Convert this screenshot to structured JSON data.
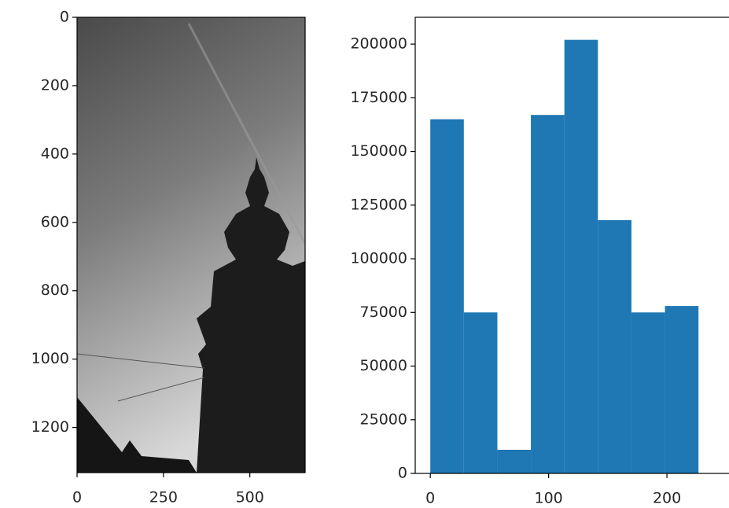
{
  "chart_data": [
    {
      "type": "image",
      "xlim": [
        0,
        660
      ],
      "ylim": [
        1332,
        0
      ],
      "xticks": [
        0,
        250,
        500
      ],
      "yticks": [
        0,
        200,
        400,
        600,
        800,
        1000,
        1200
      ]
    },
    {
      "type": "histogram",
      "bins": [
        0,
        28.33,
        56.67,
        85,
        113.33,
        141.67,
        170,
        198.33,
        226.67,
        255
      ],
      "counts": [
        165000,
        75000,
        11000,
        167000,
        202000,
        118000,
        75000,
        78000,
        0
      ],
      "color": "#1f77b4",
      "xlim": [
        -12.75,
        267.75
      ],
      "ylim": [
        0,
        212500
      ],
      "xticks": [
        0,
        100,
        200
      ],
      "yticks": [
        0,
        25000,
        50000,
        75000,
        100000,
        125000,
        150000,
        175000,
        200000
      ]
    }
  ]
}
